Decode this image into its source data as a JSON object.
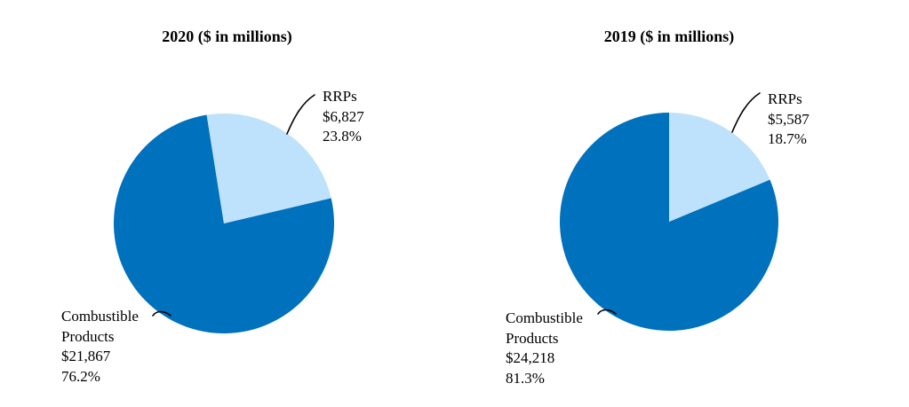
{
  "chart_data": [
    {
      "type": "pie",
      "title": "2020 ($ in millions)",
      "labels": [
        "RRPs",
        "Combustible Products"
      ],
      "values": [
        6827,
        21867
      ],
      "percentages": [
        23.8,
        76.2
      ],
      "colors": [
        "#BEE2FB",
        "#0071BC"
      ],
      "start_angle_deg": -9,
      "legend": "none, direct slice callouts",
      "callouts": {
        "rrps": {
          "name": "RRPs",
          "value": "$6,827",
          "pct": "23.8%"
        },
        "combustible": {
          "name_line1": "Combustible",
          "name_line2": "Products",
          "value": "$21,867",
          "pct": "76.2%"
        }
      }
    },
    {
      "type": "pie",
      "title": "2019 ($ in millions)",
      "labels": [
        "RRPs",
        "Combustible Products"
      ],
      "values": [
        5587,
        24218
      ],
      "percentages": [
        18.7,
        81.3
      ],
      "colors": [
        "#BEE2FB",
        "#0071BC"
      ],
      "start_angle_deg": 0,
      "legend": "none, direct slice callouts",
      "callouts": {
        "rrps": {
          "name": "RRPs",
          "value": "$5,587",
          "pct": "18.7%"
        },
        "combustible": {
          "name_line1": "Combustible",
          "name_line2": "Products",
          "value": "$24,218",
          "pct": "81.3%"
        }
      }
    }
  ]
}
